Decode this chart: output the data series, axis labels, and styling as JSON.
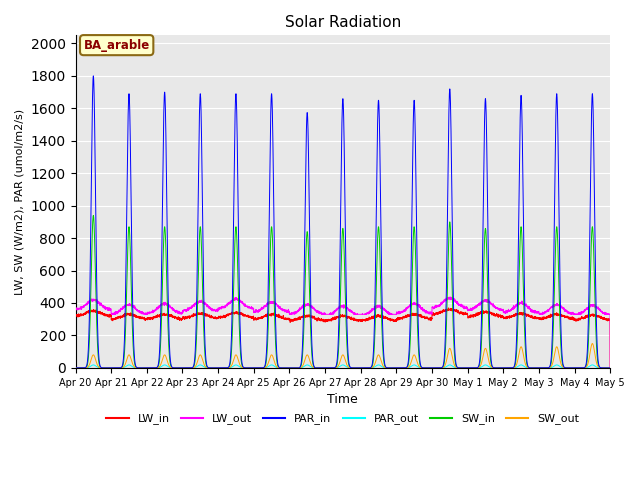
{
  "title": "Solar Radiation",
  "xlabel": "Time",
  "ylabel": "LW, SW (W/m2), PAR (umol/m2/s)",
  "ylim": [
    0,
    2050
  ],
  "yticks": [
    0,
    200,
    400,
    600,
    800,
    1000,
    1200,
    1400,
    1600,
    1800,
    2000
  ],
  "num_days": 15,
  "xtick_labels": [
    "Apr 20",
    "Apr 21",
    "Apr 22",
    "Apr 23",
    "Apr 24",
    "Apr 25",
    "Apr 26",
    "Apr 27",
    "Apr 28",
    "Apr 29",
    "Apr 30",
    "May 1",
    "May 2",
    "May 3",
    "May 4",
    "May 5"
  ],
  "series_colors": {
    "LW_in": "#ff0000",
    "LW_out": "#ff00ff",
    "PAR_in": "#0000ff",
    "PAR_out": "#00ffff",
    "SW_in": "#00cc00",
    "SW_out": "#ffa500"
  },
  "annotation_text": "BA_arable",
  "annotation_facecolor": "#ffffcc",
  "annotation_edgecolor": "#8b6914",
  "annotation_textcolor": "#8b0000",
  "background_color": "#e8e8e8",
  "samples_per_day": 288,
  "PAR_in_peaks": [
    1800,
    1690,
    1700,
    1690,
    1690,
    1690,
    1640,
    1660,
    1650,
    1650,
    1720,
    1660,
    1680,
    1690,
    1690
  ],
  "PAR_in_cloud_day": 6,
  "PAR_in_cloud_peak2": 1300,
  "SW_in_peaks": [
    940,
    870,
    870,
    870,
    870,
    870,
    840,
    860,
    870,
    870,
    900,
    860,
    870,
    870,
    870
  ],
  "SW_out_peaks": [
    80,
    80,
    80,
    80,
    80,
    80,
    80,
    80,
    80,
    80,
    120,
    120,
    130,
    130,
    150
  ],
  "LW_in_day_values": [
    340,
    320,
    320,
    325,
    330,
    320,
    310,
    310,
    310,
    320,
    350,
    335,
    325,
    320,
    315
  ],
  "LW_out_day_peaks": [
    420,
    390,
    395,
    410,
    425,
    405,
    390,
    380,
    380,
    395,
    430,
    415,
    400,
    390,
    385
  ],
  "bell_sigma": 0.06
}
